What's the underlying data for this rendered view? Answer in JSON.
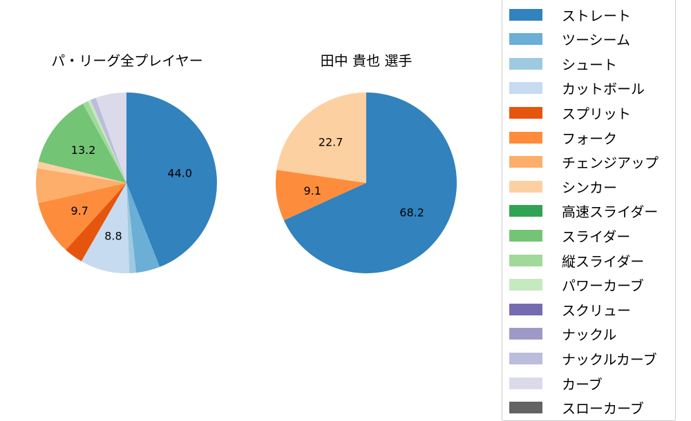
{
  "chart_data": [
    {
      "type": "pie",
      "title": "パ・リーグ全プレイヤー",
      "categories": [
        "ストレート",
        "ツーシーム",
        "シュート",
        "カットボール",
        "スプリット",
        "フォーク",
        "チェンジアップ",
        "シンカー",
        "スライダー",
        "縦スライダー",
        "パワーカーブ",
        "ナックルカーブ",
        "カーブ"
      ],
      "values": [
        44.0,
        4.3,
        1.2,
        8.8,
        3.4,
        9.7,
        6.2,
        1.2,
        13.2,
        1.0,
        0.5,
        1.0,
        5.5
      ],
      "labels_shown": [
        "44.0",
        "",
        "",
        "8.8",
        "",
        "9.7",
        "",
        "",
        "13.2",
        "",
        "",
        "",
        ""
      ],
      "start_angle": 90,
      "direction": "clockwise"
    },
    {
      "type": "pie",
      "title": "田中 貴也  選手",
      "categories": [
        "ストレート",
        "フォーク",
        "シンカー"
      ],
      "values": [
        68.2,
        9.1,
        22.7
      ],
      "labels_shown": [
        "68.2",
        "9.1",
        "22.7"
      ],
      "start_angle": 90,
      "direction": "clockwise"
    }
  ],
  "titles": {
    "left": "パ・リーグ全プレイヤー",
    "right": "田中 貴也  選手"
  },
  "colors": {
    "ストレート": "#3182bd",
    "ツーシーム": "#6baed6",
    "シュート": "#9ecae1",
    "カットボール": "#c6dbef",
    "スプリット": "#e6550d",
    "フォーク": "#fd8d3c",
    "チェンジアップ": "#fdae6b",
    "シンカー": "#fdd0a2",
    "高速スライダー": "#31a354",
    "スライダー": "#74c476",
    "縦スライダー": "#a1d99b",
    "パワーカーブ": "#c7e9c0",
    "スクリュー": "#756bb1",
    "ナックル": "#9e9ac8",
    "ナックルカーブ": "#bcbddc",
    "カーブ": "#dadaeb",
    "スローカーブ": "#636363"
  },
  "legend": {
    "items": [
      {
        "label": "ストレート",
        "color": "#3182bd"
      },
      {
        "label": "ツーシーム",
        "color": "#6baed6"
      },
      {
        "label": "シュート",
        "color": "#9ecae1"
      },
      {
        "label": "カットボール",
        "color": "#c6dbef"
      },
      {
        "label": "スプリット",
        "color": "#e6550d"
      },
      {
        "label": "フォーク",
        "color": "#fd8d3c"
      },
      {
        "label": "チェンジアップ",
        "color": "#fdae6b"
      },
      {
        "label": "シンカー",
        "color": "#fdd0a2"
      },
      {
        "label": "高速スライダー",
        "color": "#31a354"
      },
      {
        "label": "スライダー",
        "color": "#74c476"
      },
      {
        "label": "縦スライダー",
        "color": "#a1d99b"
      },
      {
        "label": "パワーカーブ",
        "color": "#c7e9c0"
      },
      {
        "label": "スクリュー",
        "color": "#756bb1"
      },
      {
        "label": "ナックル",
        "color": "#9e9ac8"
      },
      {
        "label": "ナックルカーブ",
        "color": "#bcbddc"
      },
      {
        "label": "カーブ",
        "color": "#dadaeb"
      },
      {
        "label": "スローカーブ",
        "color": "#636363"
      }
    ]
  }
}
